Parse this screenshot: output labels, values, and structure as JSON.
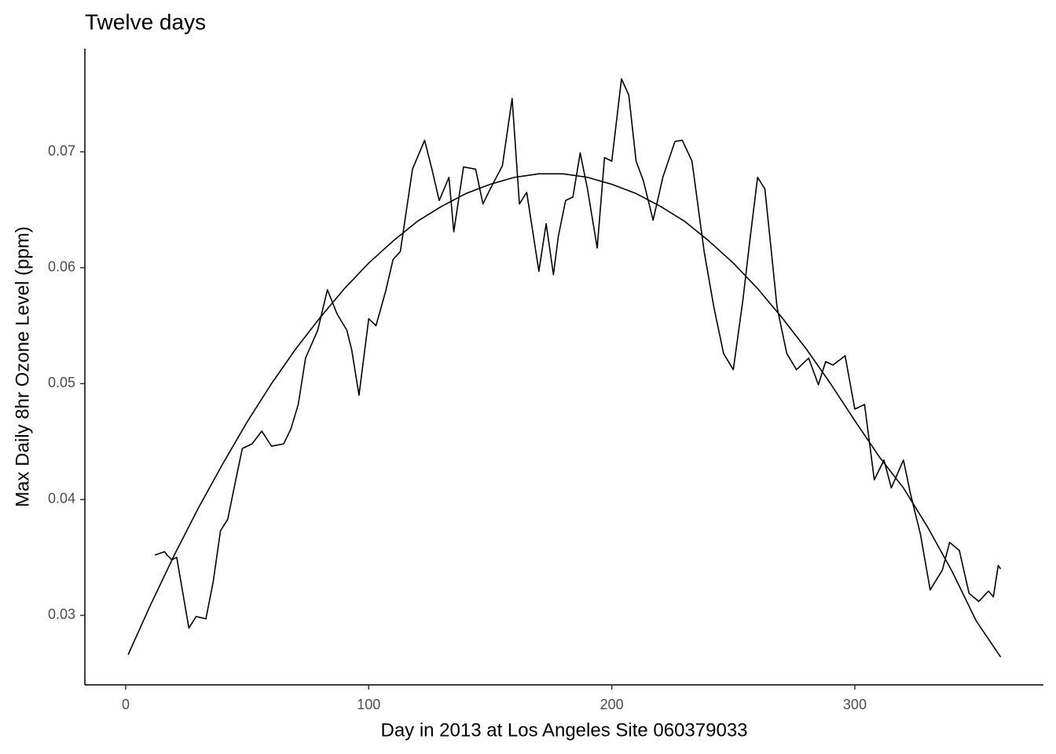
{
  "chart_data": {
    "type": "line",
    "title": "Twelve days",
    "x_label": "Day in 2013 at Los Angeles Site 060379033",
    "y_label": "Max Daily 8hr Ozone Level (ppm)",
    "xlim": [
      -16.8,
      377.6
    ],
    "ylim": [
      0.024,
      0.0789
    ],
    "xticks": [
      0,
      100,
      200,
      300
    ],
    "yticks": [
      0.03,
      0.04,
      0.05,
      0.06,
      0.07
    ],
    "grid": false,
    "series": [
      {
        "color": "#000000",
        "x": [
          12,
          16,
          17,
          19,
          21,
          26,
          29,
          33,
          36,
          39,
          42,
          45,
          48,
          52,
          56,
          60,
          65,
          68,
          71,
          74,
          79,
          83,
          87,
          91,
          93,
          96,
          100,
          103,
          107,
          110,
          113,
          118,
          123,
          126,
          129,
          133,
          135,
          139,
          144,
          147,
          150,
          155,
          159,
          162,
          165,
          170,
          173,
          176,
          178,
          181,
          184,
          187,
          190,
          194,
          197,
          200,
          204,
          207,
          210,
          213,
          217,
          221,
          226,
          229,
          233,
          238,
          242,
          246,
          250,
          254,
          257,
          260,
          263,
          268,
          272,
          276,
          281,
          285,
          288,
          291,
          296,
          300,
          304,
          308,
          312,
          315,
          320,
          323,
          327,
          331,
          336,
          339,
          343,
          347,
          351,
          355,
          357,
          359,
          360
        ],
        "values": [
          0.0352,
          0.0355,
          0.0352,
          0.0348,
          0.035,
          0.0289,
          0.0299,
          0.0297,
          0.0329,
          0.0373,
          0.0383,
          0.0414,
          0.0444,
          0.0448,
          0.0459,
          0.0446,
          0.0448,
          0.0461,
          0.0482,
          0.0522,
          0.0546,
          0.0581,
          0.056,
          0.0546,
          0.0529,
          0.049,
          0.0556,
          0.055,
          0.058,
          0.0607,
          0.0614,
          0.0685,
          0.071,
          0.0685,
          0.0658,
          0.0678,
          0.0631,
          0.0687,
          0.0685,
          0.0655,
          0.0668,
          0.0688,
          0.0746,
          0.0655,
          0.0665,
          0.0597,
          0.0638,
          0.0594,
          0.0627,
          0.0658,
          0.0661,
          0.0699,
          0.0668,
          0.0617,
          0.0695,
          0.0692,
          0.0763,
          0.0749,
          0.0692,
          0.0675,
          0.0641,
          0.0678,
          0.0709,
          0.071,
          0.0692,
          0.0614,
          0.0566,
          0.0526,
          0.0512,
          0.0573,
          0.0627,
          0.0678,
          0.0668,
          0.0566,
          0.0526,
          0.0512,
          0.0522,
          0.0499,
          0.0519,
          0.0516,
          0.0524,
          0.0478,
          0.0482,
          0.0417,
          0.0434,
          0.041,
          0.0434,
          0.0404,
          0.037,
          0.0322,
          0.0339,
          0.0363,
          0.0356,
          0.0319,
          0.0312,
          0.0321,
          0.0316,
          0.0343,
          0.034
        ]
      },
      {
        "color": "#000000",
        "x": [
          1,
          10,
          20,
          30,
          40,
          50,
          60,
          70,
          80,
          90,
          100,
          110,
          120,
          130,
          140,
          150,
          160,
          170,
          175,
          180,
          190,
          200,
          210,
          220,
          230,
          240,
          250,
          260,
          270,
          280,
          290,
          300,
          310,
          320,
          330,
          340,
          350,
          360
        ],
        "values": [
          0.0266,
          0.0308,
          0.0352,
          0.0393,
          0.0431,
          0.0467,
          0.05,
          0.053,
          0.0557,
          0.0582,
          0.0604,
          0.0623,
          0.064,
          0.0653,
          0.0664,
          0.0672,
          0.0678,
          0.0681,
          0.0681,
          0.0681,
          0.0678,
          0.0672,
          0.0664,
          0.0653,
          0.064,
          0.0623,
          0.0604,
          0.0582,
          0.0557,
          0.053,
          0.05,
          0.0468,
          0.0437,
          0.041,
          0.0376,
          0.0338,
          0.0295,
          0.0264
        ]
      }
    ]
  }
}
